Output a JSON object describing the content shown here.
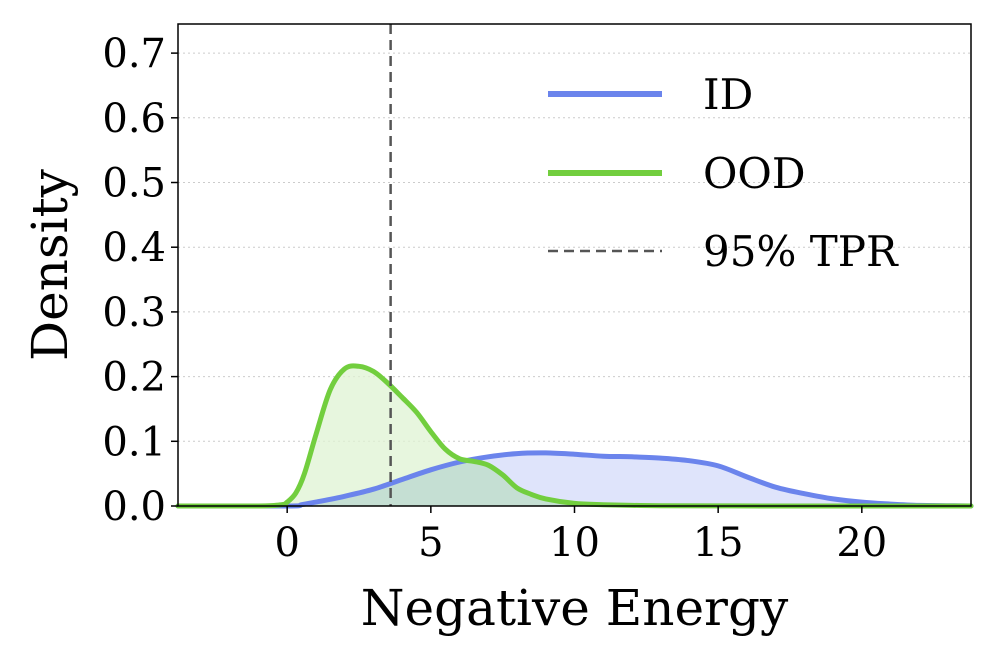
{
  "chart_data": {
    "type": "line",
    "title": "",
    "xlabel": "Negative Energy",
    "ylabel": "Density",
    "xlim": [
      -3.8,
      23.8
    ],
    "ylim": [
      0.0,
      0.745
    ],
    "xticks": [
      0,
      5,
      10,
      15,
      20
    ],
    "xtick_labels": [
      "0",
      "5",
      "10",
      "15",
      "20"
    ],
    "yticks": [
      0.0,
      0.1,
      0.2,
      0.3,
      0.4,
      0.5,
      0.6,
      0.7
    ],
    "ytick_labels": [
      "0.0",
      "0.1",
      "0.2",
      "0.3",
      "0.4",
      "0.5",
      "0.6",
      "0.7"
    ],
    "grid": "horizontal dotted",
    "legend_position": "top-right",
    "series": [
      {
        "name": "ID",
        "color": "#6b84ec",
        "fill": "#dfe4fb",
        "x": [
          -3.8,
          0,
          0.5,
          1,
          2,
          3,
          4,
          5,
          6,
          7,
          8,
          9,
          10,
          11,
          12,
          13,
          14,
          15,
          16,
          17,
          18,
          19,
          20,
          21,
          22,
          23,
          23.8
        ],
        "y": [
          0,
          0,
          0.002,
          0.006,
          0.015,
          0.026,
          0.041,
          0.056,
          0.068,
          0.076,
          0.081,
          0.082,
          0.08,
          0.077,
          0.076,
          0.074,
          0.07,
          0.062,
          0.045,
          0.029,
          0.019,
          0.011,
          0.006,
          0.003,
          0.001,
          0.0005,
          0
        ]
      },
      {
        "name": "OOD",
        "color": "#72ce3e",
        "fill": "#dff3d3",
        "x": [
          -3.8,
          -1,
          -0.2,
          0,
          0.3,
          0.6,
          1,
          1.5,
          2,
          2.5,
          3,
          3.5,
          4,
          4.5,
          5,
          5.5,
          6,
          6.5,
          7,
          7.5,
          8,
          8.5,
          9,
          10,
          11,
          12,
          13,
          15,
          18,
          23.8
        ],
        "y": [
          0,
          0,
          0.002,
          0.006,
          0.02,
          0.05,
          0.11,
          0.18,
          0.212,
          0.216,
          0.208,
          0.19,
          0.168,
          0.145,
          0.115,
          0.088,
          0.073,
          0.069,
          0.063,
          0.048,
          0.028,
          0.018,
          0.011,
          0.004,
          0.002,
          0.001,
          0.0005,
          0.0002,
          0,
          0
        ]
      }
    ],
    "reference_line": {
      "name": "95% TPR",
      "x": 3.6,
      "color": "#555555",
      "style": "dashed"
    },
    "overlap_fill_color": "#c5dfd3",
    "legend": [
      "ID",
      "OOD",
      "95% TPR"
    ]
  }
}
